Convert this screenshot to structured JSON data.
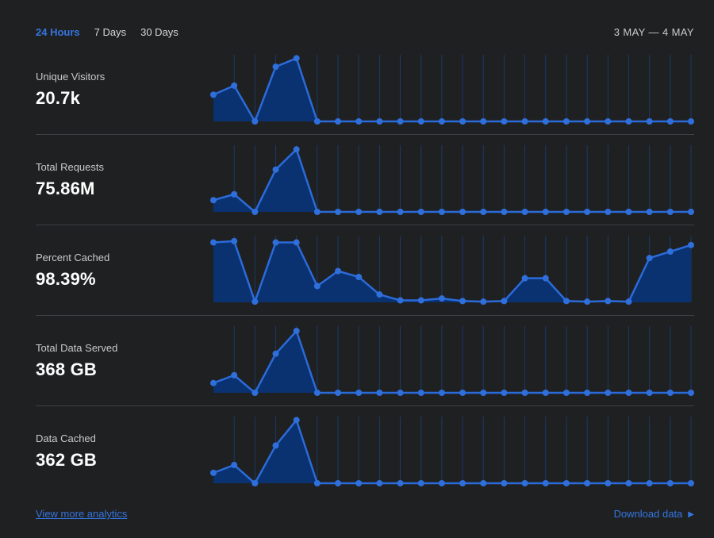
{
  "header": {
    "tabs": [
      {
        "label": "24 Hours",
        "active": true
      },
      {
        "label": "7 Days",
        "active": false
      },
      {
        "label": "30 Days",
        "active": false
      }
    ],
    "date_range": "3 MAY — 4 MAY"
  },
  "metrics": [
    {
      "label": "Unique Visitors",
      "value": "20.7k"
    },
    {
      "label": "Total Requests",
      "value": "75.86M"
    },
    {
      "label": "Percent Cached",
      "value": "98.39%"
    },
    {
      "label": "Total Data Served",
      "value": "368 GB"
    },
    {
      "label": "Data Cached",
      "value": "362 GB"
    }
  ],
  "footer": {
    "view_more_label": "View more analytics",
    "download_label": "Download data",
    "download_icon": "play-arrow-icon"
  },
  "colors": {
    "background": "#1f2022",
    "accent": "#3575e0",
    "separator": "#3f4043",
    "text_primary": "#ffffff",
    "text_secondary": "#c8cacc",
    "area_fill": "#0a3170",
    "line": "#2b6bd9",
    "dot": "#2f6fdb",
    "gridline": "#1b3a68"
  },
  "chart_data": [
    {
      "type": "area",
      "title": "Unique Visitors",
      "summary_value": "20.7k",
      "x_axis": "time, 24 hourly points (unlabeled sparkline)",
      "y_axis": "unlabeled, values normalized 0-100 (% of row max)",
      "grid": "vertical gridlines at each point after the first",
      "legend": "none",
      "values": [
        41,
        55,
        0,
        84,
        97,
        0,
        0,
        0,
        0,
        0,
        0,
        0,
        0,
        0,
        0,
        0,
        0,
        0,
        0,
        0,
        0,
        0,
        0,
        0
      ]
    },
    {
      "type": "area",
      "title": "Total Requests",
      "summary_value": "75.86M",
      "x_axis": "time, 24 hourly points (unlabeled sparkline)",
      "y_axis": "unlabeled, values normalized 0-100 (% of row max)",
      "grid": "vertical gridlines at each point after the first",
      "legend": "none",
      "values": [
        18,
        27,
        0,
        65,
        96,
        0,
        0,
        0,
        0,
        0,
        0,
        0,
        0,
        0,
        0,
        0,
        0,
        0,
        0,
        0,
        0,
        0,
        0,
        0
      ]
    },
    {
      "type": "area",
      "title": "Percent Cached",
      "summary_value": "98.39%",
      "x_axis": "time, 24 hourly points (unlabeled sparkline)",
      "y_axis": "unlabeled, values normalized 0-100 (% of row max)",
      "grid": "vertical gridlines at each point after the first",
      "legend": "none",
      "values": [
        92,
        94,
        1,
        92,
        92,
        25,
        48,
        39,
        12,
        3,
        3,
        6,
        2,
        1,
        2,
        37,
        37,
        2,
        1,
        2,
        1,
        68,
        78,
        88
      ]
    },
    {
      "type": "area",
      "title": "Total Data Served",
      "summary_value": "368 GB",
      "x_axis": "time, 24 hourly points (unlabeled sparkline)",
      "y_axis": "unlabeled, values normalized 0-100 (% of row max)",
      "grid": "vertical gridlines at each point after the first",
      "legend": "none",
      "values": [
        15,
        27,
        0,
        60,
        95,
        0,
        0,
        0,
        0,
        0,
        0,
        0,
        0,
        0,
        0,
        0,
        0,
        0,
        0,
        0,
        0,
        0,
        0,
        0
      ]
    },
    {
      "type": "area",
      "title": "Data Cached",
      "summary_value": "362 GB",
      "x_axis": "time, 24 hourly points (unlabeled sparkline)",
      "y_axis": "unlabeled, values normalized 0-100 (% of row max)",
      "grid": "vertical gridlines at each point after the first",
      "legend": "none",
      "values": [
        16,
        28,
        0,
        58,
        97,
        0,
        0,
        0,
        0,
        0,
        0,
        0,
        0,
        0,
        0,
        0,
        0,
        0,
        0,
        0,
        0,
        0,
        0,
        0
      ]
    }
  ]
}
